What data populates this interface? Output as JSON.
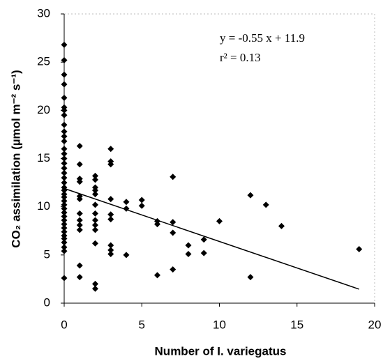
{
  "chart_data": {
    "type": "scatter",
    "xlabel": "Number of I. variegatus",
    "ylabel": "CO₂ assimilation (µmol m⁻² s⁻¹)",
    "x": [
      0,
      0,
      0,
      0,
      0,
      0,
      0,
      0,
      0,
      0,
      0,
      0,
      0,
      0,
      0,
      0,
      0,
      0,
      0,
      0,
      0,
      0,
      0,
      0,
      0,
      0,
      0,
      0,
      0,
      0,
      0,
      0,
      0,
      0,
      0,
      0,
      0,
      0,
      0,
      1,
      1,
      1,
      1,
      1,
      1,
      1,
      1,
      1,
      1,
      1,
      1,
      2,
      2,
      2,
      2,
      2,
      2,
      2,
      2,
      2,
      2,
      2,
      2,
      2,
      3,
      3,
      3,
      3,
      3,
      3,
      3,
      3,
      3,
      4,
      4,
      4,
      5,
      5,
      6,
      6,
      6,
      7,
      7,
      7,
      7,
      8,
      8,
      9,
      9,
      10,
      12,
      12,
      13,
      14,
      19
    ],
    "y": [
      26.8,
      25.2,
      23.7,
      22.7,
      21.3,
      20.3,
      20.0,
      19.5,
      18.5,
      17.8,
      17.3,
      16.8,
      16.0,
      15.5,
      15.0,
      14.5,
      14.0,
      13.5,
      13.0,
      12.5,
      12.0,
      11.7,
      11.3,
      11.0,
      10.6,
      10.2,
      9.8,
      9.4,
      9.0,
      8.6,
      8.2,
      7.8,
      7.4,
      7.0,
      6.7,
      6.3,
      5.8,
      5.4,
      2.6,
      16.3,
      14.4,
      12.9,
      12.6,
      11.1,
      10.8,
      9.3,
      8.6,
      8.1,
      7.6,
      3.9,
      2.7,
      13.2,
      12.8,
      12.0,
      11.7,
      11.3,
      10.2,
      9.3,
      8.6,
      8.1,
      7.6,
      6.2,
      2.0,
      1.5,
      16.0,
      14.7,
      14.4,
      10.8,
      9.2,
      8.7,
      6.0,
      5.5,
      5.1,
      10.5,
      9.8,
      5.0,
      10.7,
      10.1,
      8.5,
      8.2,
      2.9,
      13.1,
      8.4,
      7.3,
      3.5,
      6.0,
      5.1,
      6.6,
      5.2,
      8.5,
      11.2,
      2.7,
      10.2,
      8.0,
      5.6
    ],
    "color": "#000000",
    "trendline": {
      "slope": -0.55,
      "intercept": 11.9,
      "x_range": [
        0,
        19
      ]
    },
    "annotations": [
      "y = -0.55 x + 11.9",
      "r² = 0.13"
    ],
    "xlim": [
      0,
      20
    ],
    "xticks": [
      0,
      5,
      10,
      15,
      20
    ],
    "ylim": [
      0,
      30
    ],
    "yticks": [
      0,
      5,
      10,
      15,
      20,
      25,
      30
    ]
  }
}
